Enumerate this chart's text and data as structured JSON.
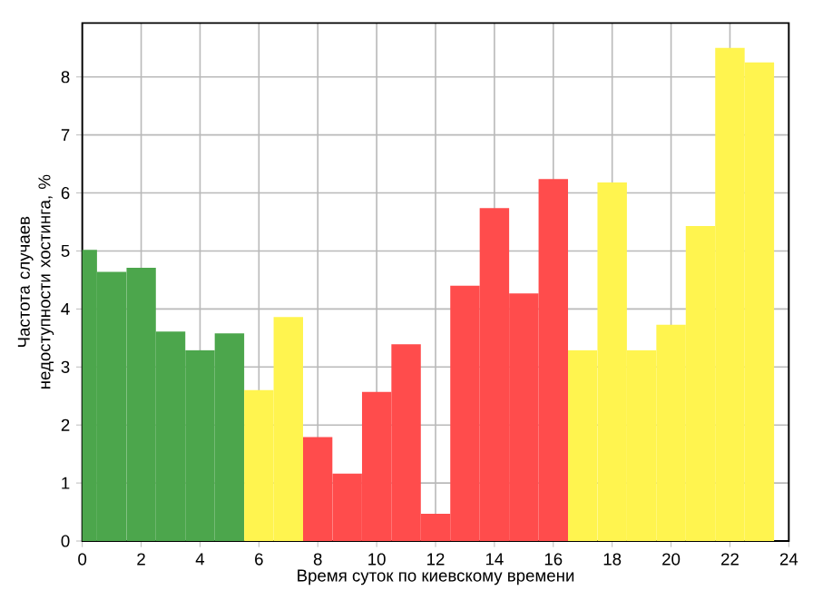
{
  "chart_data": {
    "type": "bar",
    "xlabel": "Время суток по киевскому времени",
    "ylabel": "Частота случаев недоступности хостинга, %",
    "x": [
      0,
      1,
      2,
      3,
      4,
      5,
      6,
      7,
      8,
      9,
      10,
      11,
      12,
      13,
      14,
      15,
      16,
      17,
      18,
      19,
      20,
      21,
      22,
      23
    ],
    "values": [
      5.02,
      4.64,
      4.71,
      3.61,
      3.29,
      3.58,
      2.6,
      3.86,
      1.79,
      1.16,
      2.57,
      3.39,
      0.47,
      4.4,
      5.74,
      4.27,
      6.24,
      3.29,
      6.18,
      3.29,
      3.73,
      5.43,
      8.5,
      8.25
    ],
    "colors": [
      "#4ca64c",
      "#4ca64c",
      "#4ca64c",
      "#4ca64c",
      "#4ca64c",
      "#4ca64c",
      "#fff44f",
      "#fff44f",
      "#ff4c4c",
      "#ff4c4c",
      "#ff4c4c",
      "#ff4c4c",
      "#ff4c4c",
      "#ff4c4c",
      "#ff4c4c",
      "#ff4c4c",
      "#ff4c4c",
      "#fff44f",
      "#fff44f",
      "#fff44f",
      "#fff44f",
      "#fff44f",
      "#fff44f",
      "#fff44f"
    ],
    "xlim": [
      0,
      24
    ],
    "ylim": [
      0,
      8.93
    ],
    "xticks": [
      0,
      2,
      4,
      6,
      8,
      10,
      12,
      14,
      16,
      18,
      20,
      22,
      24
    ],
    "yticks": [
      0,
      1,
      2,
      3,
      4,
      5,
      6,
      7,
      8
    ],
    "grid": true
  }
}
